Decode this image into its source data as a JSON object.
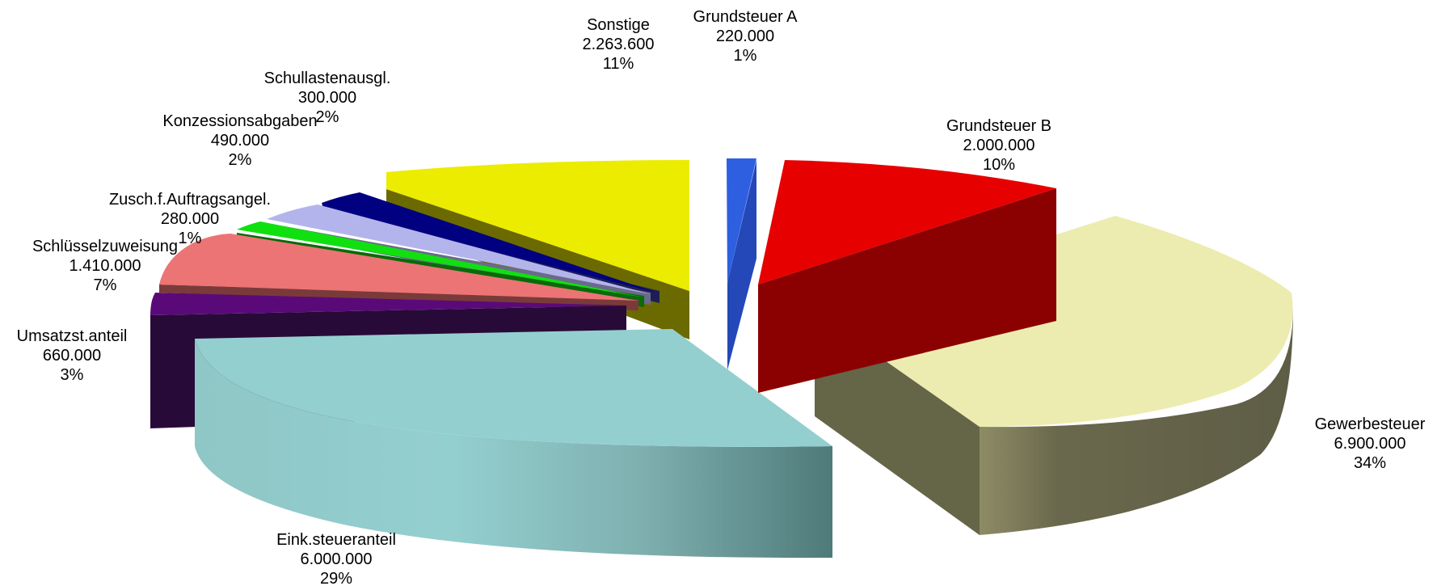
{
  "chart_data": {
    "type": "pie",
    "title": "",
    "style": "3d-exploded",
    "slices": [
      {
        "name": "Grundsteuer A",
        "value_text": "220.000",
        "value": 220000,
        "percent": "1%",
        "color": "#2d5fe0"
      },
      {
        "name": "Grundsteuer B",
        "value_text": "2.000.000",
        "value": 2000000,
        "percent": "10%",
        "color": "#e60000"
      },
      {
        "name": "Gewerbesteuer",
        "value_text": "6.900.000",
        "value": 6900000,
        "percent": "34%",
        "color": "#ececb0"
      },
      {
        "name": "Eink.steueranteil",
        "value_text": "6.000.000",
        "value": 6000000,
        "percent": "29%",
        "color": "#94cfcf"
      },
      {
        "name": "Umsatzst.anteil",
        "value_text": "660.000",
        "value": 660000,
        "percent": "3%",
        "color": "#5a0a78"
      },
      {
        "name": "Schlüsselzuweisung",
        "value_text": "1.410.000",
        "value": 1410000,
        "percent": "7%",
        "color": "#ec7474"
      },
      {
        "name": "Zusch.f.Auftragsangel.",
        "value_text": "280.000",
        "value": 280000,
        "percent": "1%",
        "color": "#10e010"
      },
      {
        "name": "Konzessionsabgaben",
        "value_text": "490.000",
        "value": 490000,
        "percent": "2%",
        "color": "#b4b4ec"
      },
      {
        "name": "Schullastenausgl.",
        "value_text": "300.000",
        "value": 300000,
        "percent": "2%",
        "color": "#000080"
      },
      {
        "name": "Sonstige",
        "value_text": "2.263.600",
        "value": 2263600,
        "percent": "11%",
        "color": "#ecec00"
      }
    ]
  }
}
